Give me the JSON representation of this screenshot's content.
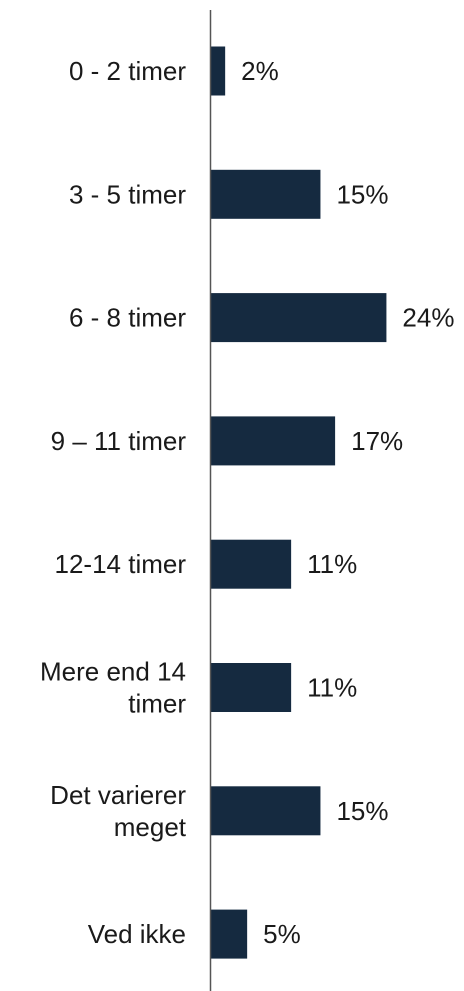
{
  "chart_data": {
    "type": "bar",
    "orientation": "horizontal",
    "categories": [
      [
        "0 - 2 timer"
      ],
      [
        "3 - 5 timer"
      ],
      [
        "6 - 8 timer"
      ],
      [
        "9 – 11 timer"
      ],
      [
        "12-14 timer"
      ],
      [
        "Mere end 14",
        "timer"
      ],
      [
        "Det varierer",
        "meget"
      ],
      [
        "Ved ikke"
      ]
    ],
    "values": [
      2,
      15,
      24,
      17,
      11,
      11,
      15,
      5
    ],
    "value_labels": [
      "2%",
      "15%",
      "24%",
      "17%",
      "11%",
      "11%",
      "15%",
      "5%"
    ],
    "unit": "%",
    "bar_color": "#152a40",
    "axis_color": "#555555",
    "grid": false,
    "legend": "none"
  }
}
